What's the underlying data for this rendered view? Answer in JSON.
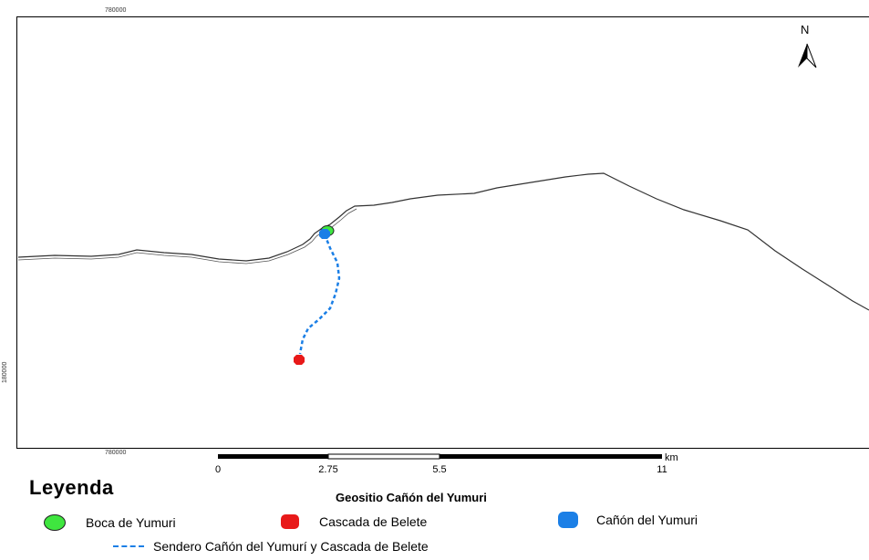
{
  "coordinates": {
    "top": "780000",
    "bottom": "780000",
    "left": "180000"
  },
  "north_arrow": {
    "label": "N",
    "icon": "north-arrow-icon"
  },
  "scale_bar": {
    "labels": [
      "0",
      "2.75",
      "5.5",
      "11"
    ],
    "unit": "km"
  },
  "legend": {
    "title": "Leyenda",
    "map_title": "Geositio Cañón del Yumuri",
    "items": [
      {
        "label": "Boca de Yumuri",
        "color": "#3fe63f",
        "icon": "green-circle-icon"
      },
      {
        "label": "Cascada de Belete",
        "color": "#e81919",
        "icon": "red-octagon-icon"
      },
      {
        "label": "Cañón del Yumuri",
        "color": "#1b7fe6",
        "icon": "blue-octagon-icon"
      },
      {
        "label": "Sendero Cañón del Yumurí y Cascada de Belete",
        "color": "#1b7fe6",
        "icon": "dashed-line-icon"
      }
    ]
  }
}
